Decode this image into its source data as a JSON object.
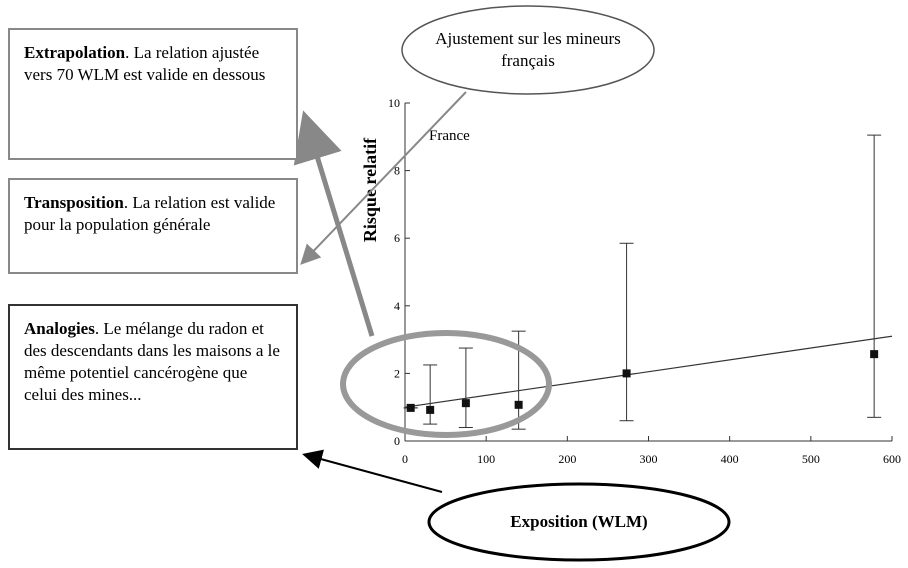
{
  "boxes": [
    {
      "lead": "Extrapolation",
      "text": ". La relation ajustée vers 70 WLM est valide en dessous"
    },
    {
      "lead": "Transposition",
      "text": ". La relation est valide pour la population générale"
    },
    {
      "lead": "Analogies",
      "text": ". Le mélange du radon et des descendants dans les maisons a le même potentiel cancérogène que celui des mines..."
    }
  ],
  "ellipses": [
    "Ajustement sur les mineurs français",
    "Exposition (WLM)"
  ],
  "chart_data": {
    "type": "errorbar",
    "title": "France",
    "y_label": "Risque relatif",
    "x": [
      7,
      31,
      75,
      140,
      273,
      578
    ],
    "values": [
      0.98,
      0.92,
      1.12,
      1.07,
      2.0,
      2.57
    ],
    "lower": [
      0.98,
      0.5,
      0.4,
      0.35,
      0.6,
      0.7
    ],
    "upper": [
      0.98,
      2.25,
      2.75,
      3.25,
      5.85,
      9.05
    ],
    "fit": {
      "x": [
        0,
        600
      ],
      "values": [
        1.0,
        3.1
      ]
    },
    "xlim": [
      0,
      600
    ],
    "ylim": [
      0,
      10
    ],
    "xticks": [
      0,
      100,
      200,
      300,
      400,
      500,
      600
    ],
    "yticks": [
      0,
      2,
      4,
      6,
      8,
      10
    ]
  }
}
